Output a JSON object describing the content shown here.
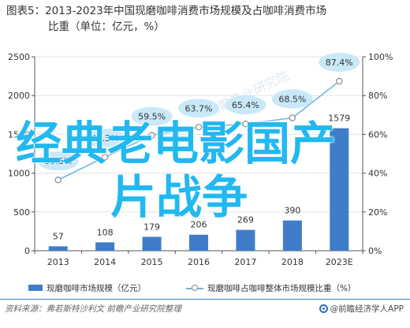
{
  "title": {
    "line1": "图表5：2013-2023年中国现磨咖啡消费市场规模及占咖啡消费市场",
    "line2": "比重（单位：亿元，%）"
  },
  "chart_data": {
    "type": "bar+line",
    "categories": [
      "2013",
      "2014",
      "2015",
      "2016",
      "2017",
      "2018",
      "2023E"
    ],
    "series": [
      {
        "name": "现磨咖啡市场规模（亿元）",
        "type": "bar",
        "axis": "left",
        "values": [
          57,
          108,
          179,
          206,
          269,
          390,
          1579
        ],
        "labels": [
          "57",
          "108",
          "179",
          "206",
          "269",
          "390",
          "1579"
        ]
      },
      {
        "name": "现磨咖啡占咖啡整体市场规模比重（%）",
        "type": "line",
        "axis": "right",
        "values": [
          36.5,
          48.3,
          59.5,
          63.7,
          65.4,
          68.5,
          87.4
        ],
        "labels": [
          "36.5%",
          "48.3%",
          "59.5%",
          "63.7%",
          "65.4%",
          "68.5%",
          "87.4%"
        ]
      }
    ],
    "y_left": {
      "ticks": [
        "0",
        "500",
        "1000",
        "1500",
        "2000",
        "2500"
      ],
      "min": 0,
      "max": 2500
    },
    "y_right": {
      "ticks": [
        "0%",
        "20%",
        "40%",
        "60%",
        "80%",
        "100%"
      ],
      "min": 0,
      "max": 100
    },
    "colors": {
      "bar": "#3F7DC9",
      "line": "#6CB7E6",
      "label_bubble": "#C9E9F8"
    }
  },
  "legend": {
    "bar_label": "现磨咖啡市场规模（亿元）",
    "line_label": "现磨咖啡占咖啡整体市场规模比重（%）"
  },
  "footer": {
    "source": "资料来源：弗若斯特沙利文 前瞻产业研究院整理",
    "logo_text": "@前瞻经济学人APP"
  },
  "watermark": {
    "line1": "经典老电影国产",
    "line2": "片战争",
    "faint": "前瞻产业研究院"
  }
}
